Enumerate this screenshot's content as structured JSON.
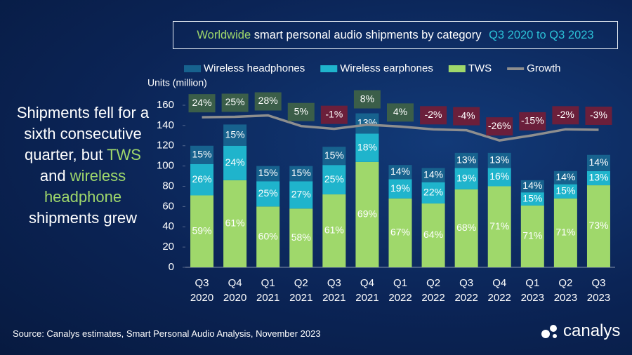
{
  "chart_data": {
    "type": "bar",
    "title_parts": [
      "Worldwide",
      "smart personal audio shipments by category",
      "Q3 2020 to Q3 2023"
    ],
    "y_label": "Units (million)",
    "categories": [
      [
        "Q3",
        "2020"
      ],
      [
        "Q4",
        "2020"
      ],
      [
        "Q1",
        "2021"
      ],
      [
        "Q2",
        "2021"
      ],
      [
        "Q3",
        "2021"
      ],
      [
        "Q4",
        "2021"
      ],
      [
        "Q1",
        "2022"
      ],
      [
        "Q2",
        "2022"
      ],
      [
        "Q3",
        "2022"
      ],
      [
        "Q4",
        "2022"
      ],
      [
        "Q1",
        "2023"
      ],
      [
        "Q2",
        "2023"
      ],
      [
        "Q3",
        "2023"
      ]
    ],
    "ylim": [
      0,
      160
    ],
    "yticks": [
      0,
      20,
      40,
      60,
      80,
      100,
      120,
      140,
      160
    ],
    "y2lim": [
      -300,
      50
    ],
    "series": [
      {
        "name": "Wireless headphones",
        "color": "#17628e",
        "values": [
          18,
          21,
          15,
          15,
          18,
          20,
          14,
          14,
          15,
          15,
          12,
          13,
          16
        ],
        "share_labels": [
          "15%",
          "15%",
          "15%",
          "15%",
          "15%",
          "13%",
          "14%",
          "14%",
          "13%",
          "13%",
          "14%",
          "14%",
          "14%"
        ]
      },
      {
        "name": "Wireless earphones",
        "color": "#1fb4cc",
        "values": [
          31,
          34,
          25,
          27,
          29,
          28,
          19,
          21,
          21,
          18,
          13,
          14,
          14
        ],
        "share_labels": [
          "26%",
          "24%",
          "25%",
          "27%",
          "25%",
          "18%",
          "19%",
          "22%",
          "19%",
          "16%",
          "15%",
          "15%",
          "13%"
        ]
      },
      {
        "name": "TWS",
        "color": "#9fd86b",
        "values": [
          71,
          86,
          60,
          58,
          72,
          104,
          68,
          63,
          77,
          80,
          61,
          68,
          81
        ],
        "share_labels": [
          "59%",
          "61%",
          "60%",
          "58%",
          "61%",
          "69%",
          "67%",
          "64%",
          "68%",
          "71%",
          "71%",
          "71%",
          "73%"
        ]
      },
      {
        "name": "Growth",
        "type": "line",
        "axis": "y2",
        "color": "#8e8e8e",
        "values": [
          24,
          25,
          28,
          5,
          -1,
          8,
          4,
          -2,
          -4,
          -26,
          -15,
          -2,
          -3
        ],
        "value_labels": [
          "24%",
          "25%",
          "28%",
          "5%",
          "-1%",
          "8%",
          "4%",
          "-2%",
          "-4%",
          "-26%",
          "-15%",
          "-2%",
          "-3%"
        ],
        "label_colors": {
          "positive": "#3b5e49",
          "negative": "#6b1f3b"
        }
      }
    ],
    "side_note": [
      "Shipments fell for a sixth consecutive quarter, but",
      "TWS",
      "and",
      "wireless headphone",
      "shipments grew"
    ],
    "source": "Source: Canalys estimates, Smart Personal Audio Analysis, November 2023",
    "logo": "canalys"
  }
}
